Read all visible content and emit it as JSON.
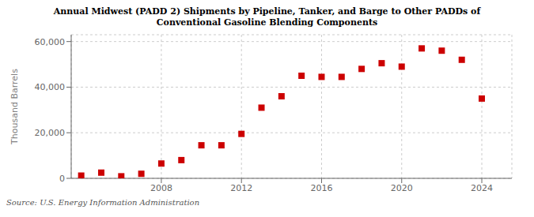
{
  "chart_data": {
    "type": "scatter",
    "title": "Annual Midwest (PADD 2) Shipments by Pipeline, Tanker, and Barge to Other PADDs of\nConventional Gasoline Blending Components",
    "ylabel": "Thousand Barrels",
    "annotations": [
      "Source: U.S. Energy Information Administration"
    ],
    "x": [
      2004,
      2005,
      2006,
      2007,
      2008,
      2009,
      2010,
      2011,
      2012,
      2013,
      2014,
      2015,
      2016,
      2017,
      2018,
      2019,
      2020,
      2021,
      2022,
      2023,
      2024
    ],
    "values": [
      1200,
      2500,
      900,
      2000,
      6500,
      8000,
      14500,
      14500,
      19500,
      31000,
      36000,
      45000,
      44500,
      44500,
      48000,
      50500,
      49000,
      57000,
      56000,
      52000,
      35000
    ],
    "color": "#cc0000",
    "marker": "square",
    "xlim": [
      2003.5,
      2025.5
    ],
    "ylim": [
      0,
      63000
    ],
    "xticks": [
      2008,
      2012,
      2016,
      2020,
      2024
    ],
    "yticks": [
      0,
      {
        "value": 20000,
        "label": "20,000"
      },
      {
        "value": 40000,
        "label": "40,000"
      },
      {
        "value": 60000,
        "label": "60,000"
      }
    ],
    "grid": true
  }
}
